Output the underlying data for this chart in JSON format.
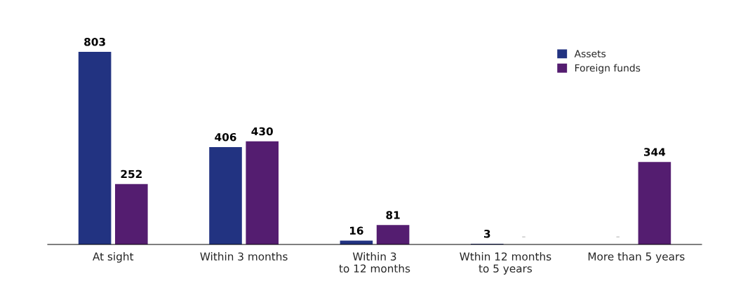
{
  "chart_data": {
    "type": "bar",
    "categories": [
      "At sight",
      "Within 3 months",
      "Within 3\nto 12 months",
      "Wthin 12 months\nto 5 years",
      "More than 5 years"
    ],
    "series": [
      {
        "name": "Assets",
        "color": "#223381",
        "values": [
          803,
          406,
          16,
          3,
          null
        ],
        "value_labels": [
          "803",
          "406",
          "16",
          "3",
          "–"
        ]
      },
      {
        "name": "Foreign funds",
        "color": "#541d70",
        "values": [
          252,
          430,
          81,
          null,
          344
        ],
        "value_labels": [
          "252",
          "430",
          "81",
          "–",
          "344"
        ]
      }
    ],
    "legend": "top right",
    "grid": false
  }
}
